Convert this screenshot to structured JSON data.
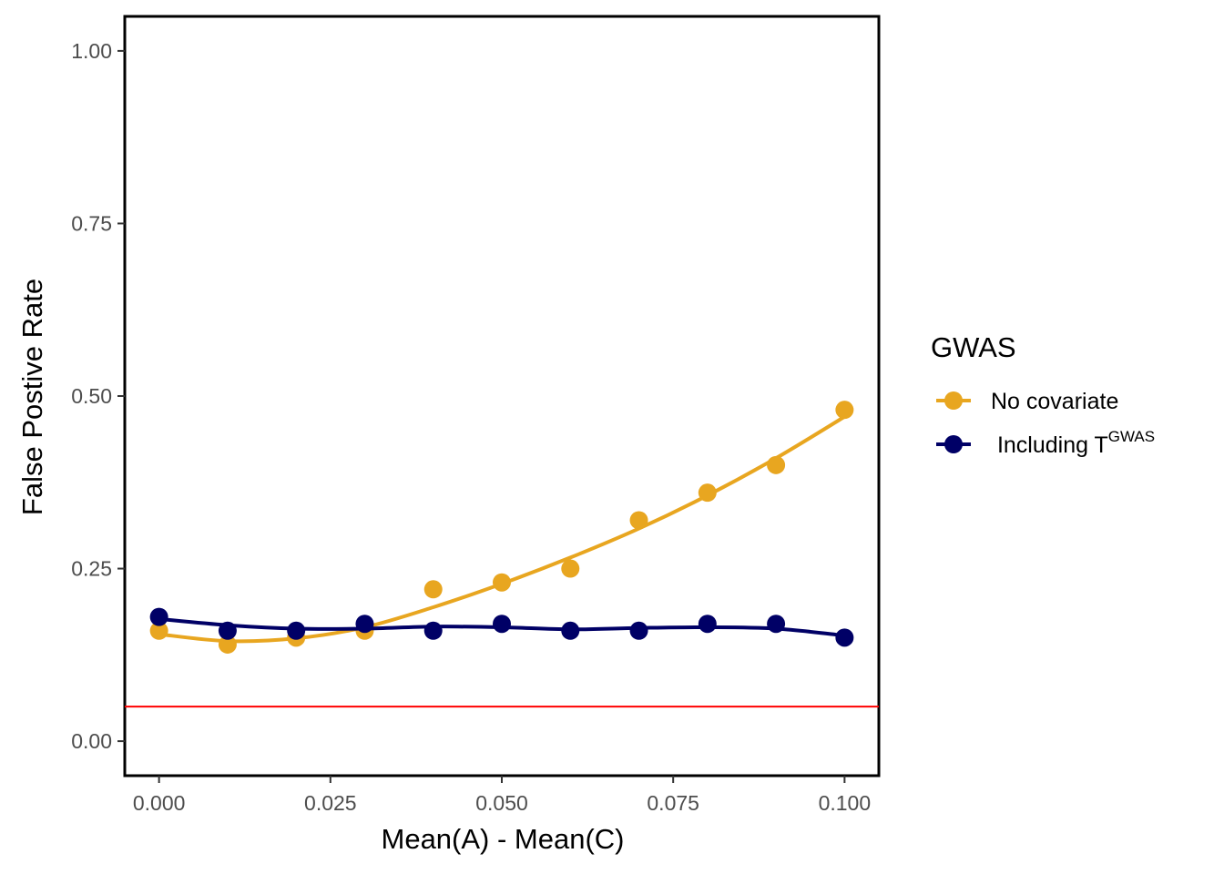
{
  "chart_data": {
    "type": "line",
    "xlabel": "Mean(A) - Mean(C)",
    "ylabel": "False Postive Rate",
    "xlim": [
      -0.005,
      0.105
    ],
    "ylim": [
      -0.05,
      1.05
    ],
    "x_ticks": [
      0.0,
      0.025,
      0.05,
      0.075,
      0.1
    ],
    "x_tick_labels": [
      "0.000",
      "0.025",
      "0.050",
      "0.075",
      "0.100"
    ],
    "y_ticks": [
      0.0,
      0.25,
      0.5,
      0.75,
      1.0
    ],
    "y_tick_labels": [
      "0.00",
      "0.25",
      "0.50",
      "0.75",
      "1.00"
    ],
    "grid": false,
    "reference_line": {
      "y": 0.05,
      "color": "#ff0000"
    },
    "legend": {
      "title": "GWAS",
      "placement": "right",
      "entries": [
        {
          "label": "No covariate",
          "color": "#e8a620"
        },
        {
          "label": " Including T",
          "superscript": "GWAS",
          "color": "#000066"
        }
      ]
    },
    "x": [
      0.0,
      0.01,
      0.02,
      0.03,
      0.04,
      0.05,
      0.06,
      0.07,
      0.08,
      0.09,
      0.1
    ],
    "series": [
      {
        "name": "No covariate",
        "color": "#e8a620",
        "values": [
          0.16,
          0.14,
          0.15,
          0.16,
          0.22,
          0.23,
          0.25,
          0.32,
          0.36,
          0.4,
          0.48
        ],
        "smooth": [
          0.155,
          0.145,
          0.149,
          0.165,
          0.194,
          0.228,
          0.266,
          0.308,
          0.356,
          0.41,
          0.47
        ]
      },
      {
        "name": "Including T^GWAS",
        "color": "#000066",
        "values": [
          0.18,
          0.16,
          0.16,
          0.17,
          0.16,
          0.17,
          0.16,
          0.16,
          0.17,
          0.17,
          0.15
        ],
        "smooth": [
          0.177,
          0.168,
          0.163,
          0.163,
          0.166,
          0.165,
          0.162,
          0.164,
          0.165,
          0.163,
          0.153
        ]
      }
    ]
  }
}
